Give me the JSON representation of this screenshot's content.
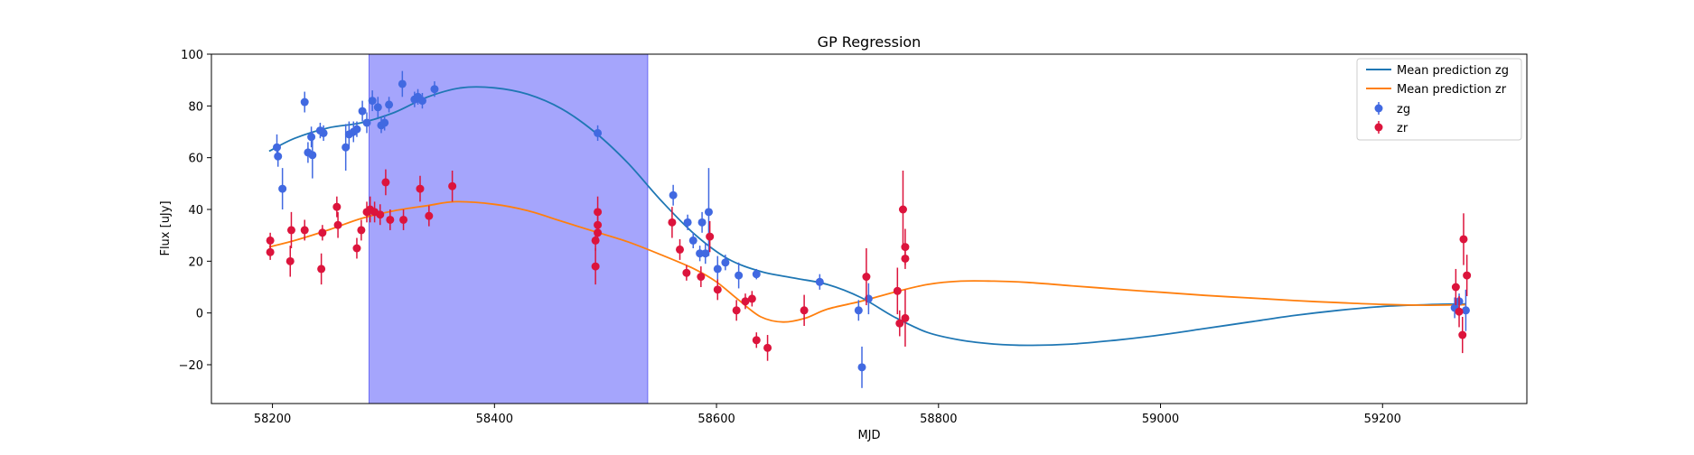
{
  "chart_data": {
    "type": "scatter",
    "title": "GP Regression",
    "xlabel": "MJD",
    "ylabel": "Flux [uJy]",
    "xlim": [
      58145,
      59330
    ],
    "ylim": [
      -35,
      100
    ],
    "xticks": [
      58200,
      58400,
      58600,
      58800,
      59000,
      59200
    ],
    "yticks": [
      -20,
      0,
      20,
      40,
      60,
      80,
      100
    ],
    "grid": false,
    "legend_position": "top-right",
    "shaded_region": {
      "x_start": 58287,
      "x_end": 58538,
      "color": "#a5a5fc"
    },
    "colors": {
      "zg": "#4169e1",
      "zr": "#dc143c",
      "mean_zg": "#1f77b4",
      "mean_zr": "#ff7f0e"
    },
    "legend": [
      "Mean prediction zg",
      "Mean prediction zr",
      "zg",
      "zr"
    ],
    "mean_predictions": [
      {
        "name": "Mean prediction zg",
        "x": [
          58197,
          58220,
          58250,
          58280,
          58310,
          58340,
          58370,
          58400,
          58430,
          58460,
          58490,
          58520,
          58550,
          58580,
          58610,
          58640,
          58670,
          58700,
          58730,
          58760,
          58790,
          58820,
          58850,
          58880,
          58920,
          58960,
          59000,
          59040,
          59080,
          59120,
          59160,
          59200,
          59240,
          59275
        ],
        "y": [
          62.5,
          67.5,
          71.5,
          73.5,
          77.5,
          83.5,
          87,
          87,
          84.5,
          79,
          70,
          58,
          43.5,
          30.5,
          21,
          16,
          13.5,
          11,
          6,
          -1.5,
          -7.5,
          -10.5,
          -12,
          -12.5,
          -12,
          -10.5,
          -8.5,
          -6,
          -3.5,
          -1,
          1,
          2.5,
          3.2,
          3.5
        ]
      },
      {
        "name": "Mean prediction zr",
        "x": [
          58197,
          58220,
          58250,
          58280,
          58310,
          58340,
          58365,
          58400,
          58430,
          58460,
          58490,
          58520,
          58550,
          58580,
          58600,
          58620,
          58640,
          58660,
          58680,
          58700,
          58730,
          58760,
          58790,
          58820,
          58850,
          58880,
          58920,
          58960,
          59000,
          59040,
          59080,
          59120,
          59160,
          59200,
          59240,
          59275
        ],
        "y": [
          25.5,
          28,
          32,
          36.5,
          39.5,
          41.5,
          43,
          42,
          39.5,
          35.5,
          31.5,
          27.5,
          22.5,
          17,
          12,
          5,
          -1.5,
          -3.5,
          -2,
          1.5,
          4.5,
          8,
          11,
          12.3,
          12.3,
          11.8,
          10.5,
          9.2,
          8,
          6.8,
          5.8,
          4.8,
          4,
          3.3,
          3,
          3.2
        ]
      }
    ],
    "series": [
      {
        "name": "zg",
        "points": [
          [
            58204,
            64,
            5
          ],
          [
            58205,
            60.5,
            4
          ],
          [
            58209,
            48,
            8
          ],
          [
            58229,
            81.5,
            4
          ],
          [
            58232,
            62,
            4
          ],
          [
            58235,
            68,
            4
          ],
          [
            58236,
            61,
            9
          ],
          [
            58243,
            70.5,
            3
          ],
          [
            58246,
            69.5,
            3
          ],
          [
            58266,
            64,
            9
          ],
          [
            58269,
            69,
            5
          ],
          [
            58273,
            70,
            4
          ],
          [
            58276,
            71,
            3
          ],
          [
            58281,
            78,
            4
          ],
          [
            58285,
            73.5,
            4
          ],
          [
            58290,
            82,
            4
          ],
          [
            58295,
            79.5,
            4
          ],
          [
            58298,
            72.5,
            3
          ],
          [
            58301,
            73.5,
            3
          ],
          [
            58305,
            80.5,
            3
          ],
          [
            58317,
            88.5,
            5
          ],
          [
            58328,
            82.5,
            3
          ],
          [
            58331,
            83.5,
            3
          ],
          [
            58335,
            82,
            3
          ],
          [
            58346,
            86.5,
            3
          ],
          [
            58493,
            69.5,
            3
          ],
          [
            58561,
            45.5,
            4
          ],
          [
            58574,
            35,
            3
          ],
          [
            58579,
            28,
            3
          ],
          [
            58585,
            23,
            3
          ],
          [
            58587,
            35,
            4
          ],
          [
            58590,
            23,
            4
          ],
          [
            58593,
            39,
            17
          ],
          [
            58601,
            17,
            5
          ],
          [
            58608,
            19.5,
            3
          ],
          [
            58620,
            14.5,
            5
          ],
          [
            58636,
            15,
            2
          ],
          [
            58693,
            12,
            3
          ],
          [
            58728,
            1,
            4
          ],
          [
            58731,
            -21,
            8
          ],
          [
            58737,
            5.5,
            6
          ],
          [
            59265,
            2,
            4
          ],
          [
            59269,
            4.5,
            3
          ],
          [
            59275,
            1,
            8
          ]
        ]
      },
      {
        "name": "zr",
        "points": [
          [
            58198,
            28,
            3
          ],
          [
            58198,
            23.5,
            3
          ],
          [
            58216,
            20,
            6
          ],
          [
            58217,
            32,
            7
          ],
          [
            58229,
            32,
            4
          ],
          [
            58244,
            17,
            6
          ],
          [
            58245,
            31,
            3
          ],
          [
            58258,
            41,
            4
          ],
          [
            58259,
            34,
            5
          ],
          [
            58276,
            25,
            4
          ],
          [
            58280,
            32,
            4
          ],
          [
            58285,
            39,
            4
          ],
          [
            58288,
            40,
            5
          ],
          [
            58292,
            39,
            4
          ],
          [
            58297,
            38,
            4
          ],
          [
            58302,
            50.5,
            5
          ],
          [
            58306,
            36,
            4
          ],
          [
            58318,
            36,
            4
          ],
          [
            58333,
            48,
            5
          ],
          [
            58341,
            37.5,
            4
          ],
          [
            58362,
            49,
            6
          ],
          [
            58491,
            28,
            4
          ],
          [
            58491,
            18,
            7
          ],
          [
            58493,
            39,
            6
          ],
          [
            58493,
            34,
            4
          ],
          [
            58493,
            31,
            4
          ],
          [
            58560,
            35,
            6
          ],
          [
            58567,
            24.5,
            4
          ],
          [
            58573,
            15.5,
            3
          ],
          [
            58586,
            14,
            4
          ],
          [
            58594,
            29.5,
            6
          ],
          [
            58601,
            9,
            4
          ],
          [
            58618,
            1,
            4
          ],
          [
            58626,
            4.5,
            3
          ],
          [
            58632,
            5.5,
            3
          ],
          [
            58636,
            -10.5,
            3
          ],
          [
            58646,
            -13.5,
            5
          ],
          [
            58679,
            1,
            6
          ],
          [
            58735,
            14,
            11
          ],
          [
            58763,
            8.5,
            9
          ],
          [
            58765,
            -4,
            5
          ],
          [
            58768,
            40,
            15
          ],
          [
            58770,
            25.5,
            7
          ],
          [
            58770,
            21,
            4
          ],
          [
            58770,
            -2,
            11
          ],
          [
            59266,
            10,
            7
          ],
          [
            59269,
            0.5,
            6
          ],
          [
            59272,
            -8.5,
            7
          ],
          [
            59273,
            28.5,
            10
          ],
          [
            59276,
            14.5,
            8
          ]
        ]
      }
    ]
  }
}
